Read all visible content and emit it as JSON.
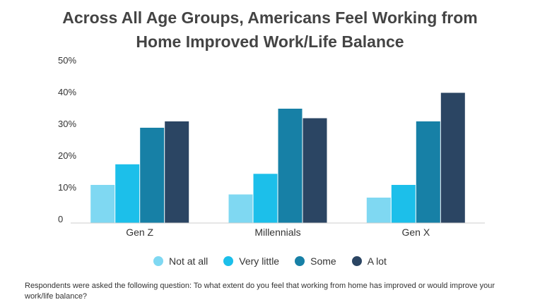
{
  "chart_data": {
    "type": "bar",
    "title_line1": "Across All Age Groups, Americans Feel Working from",
    "title_line2": "Home Improved Work/Life Balance",
    "categories": [
      "Gen Z",
      "Millennials",
      "Gen X"
    ],
    "series": [
      {
        "name": "Not at all",
        "color": "#7fd8f2",
        "values": [
          12,
          9,
          8
        ]
      },
      {
        "name": "Very little",
        "color": "#1cbfea",
        "values": [
          18.5,
          15.5,
          12
        ]
      },
      {
        "name": "Some",
        "color": "#1780a6",
        "values": [
          30,
          36,
          32
        ]
      },
      {
        "name": "A lot",
        "color": "#2b4563",
        "values": [
          32,
          33,
          41
        ]
      }
    ],
    "y_ticks": [
      "0",
      "10%",
      "20%",
      "30%",
      "40%",
      "50%"
    ],
    "ylim": [
      0,
      50
    ],
    "legend_position": "bottom",
    "grid": false
  },
  "footnote": "Respondents were asked the following question: To what extent do you feel that working from home has improved or would improve your work/life balance?"
}
